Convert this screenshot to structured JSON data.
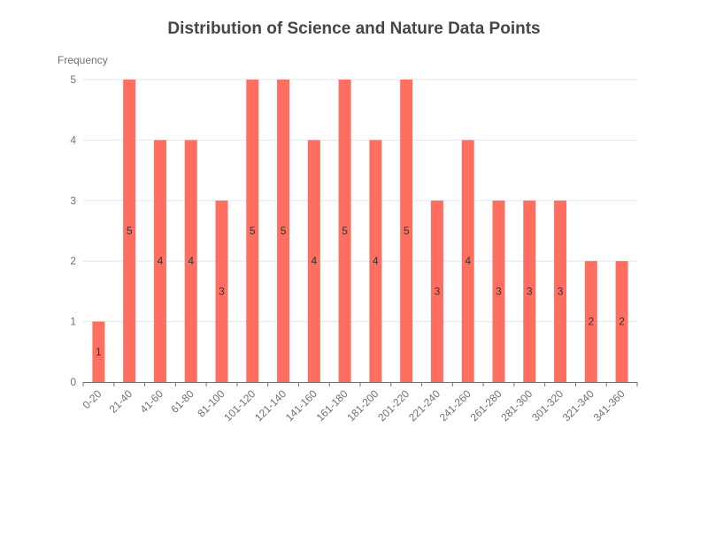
{
  "chart_data": {
    "type": "bar",
    "title": "Distribution of Science and Nature Data Points",
    "xlabel": "",
    "ylabel": "Frequency",
    "ylim": [
      0,
      5
    ],
    "yticks": [
      "0",
      "1",
      "2",
      "3",
      "4",
      "5"
    ],
    "grid": true,
    "legend": "none",
    "bar_color": "#ff6f61",
    "categories": [
      "0-20",
      "21-40",
      "41-60",
      "61-80",
      "81-100",
      "101-120",
      "121-140",
      "141-160",
      "161-180",
      "181-200",
      "201-220",
      "221-240",
      "241-260",
      "261-280",
      "281-300",
      "301-320",
      "321-340",
      "341-360"
    ],
    "values": [
      1,
      5,
      4,
      4,
      3,
      5,
      5,
      4,
      5,
      4,
      5,
      3,
      4,
      3,
      3,
      3,
      2,
      2
    ]
  }
}
